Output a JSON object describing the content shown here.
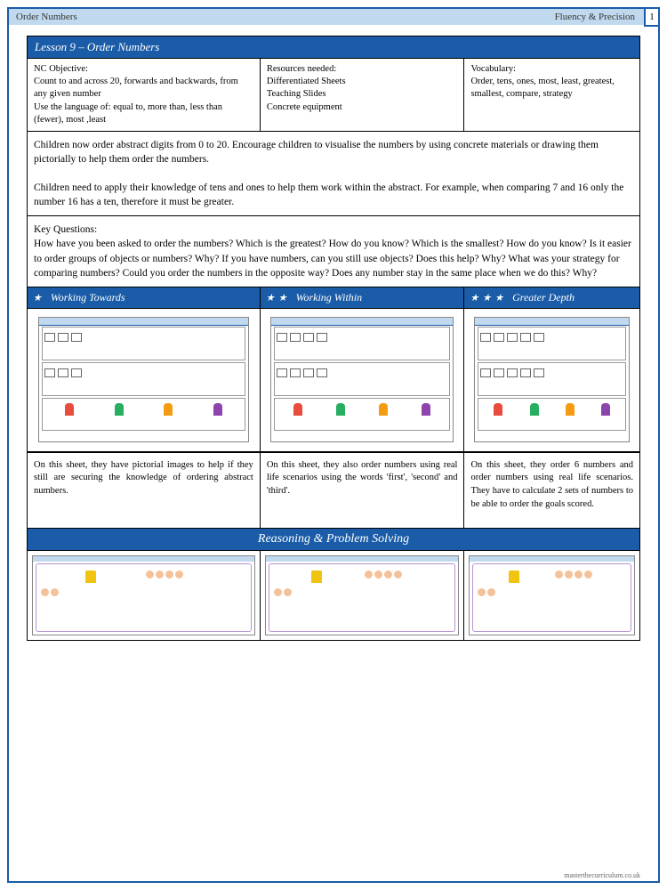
{
  "header": {
    "left": "Order Numbers",
    "right": "Fluency & Precision",
    "page": "1"
  },
  "lesson_title": "Lesson 9 – Order Numbers",
  "info": {
    "objective": {
      "label": "NC Objective:",
      "text": "Count to and across 20, forwards and backwards, from any given number\nUse the language of: equal to, more than, less than (fewer), most ,least"
    },
    "resources": {
      "label": "Resources needed:",
      "text": "Differentiated Sheets\nTeaching Slides\nConcrete equipment"
    },
    "vocab": {
      "label": "Vocabulary:",
      "text": "Order, tens, ones, most, least, greatest, smallest, compare, strategy"
    }
  },
  "description": "Children now order abstract digits from 0 to 20. Encourage children to visualise the numbers by using concrete materials or drawing them pictorially to help them order the numbers.\n\nChildren need to apply their knowledge of tens and ones to help them work within the abstract. For example, when comparing 7 and 16 only the number 16 has a ten, therefore it must be greater.",
  "key_questions": {
    "label": "Key Questions:",
    "text": "How have you been asked to order the numbers?  Which is the greatest? How do you know? Which is the smallest? How do you know?  Is it easier to order groups of objects or numbers? Why? If you have numbers, can you still use objects? Does this help? Why? What was your strategy for comparing numbers? Could you order the numbers in the opposite way? Does any number stay in the same place when we do this? Why?"
  },
  "levels": [
    {
      "stars": 1,
      "name": "Working Towards",
      "desc": "On this sheet, they have pictorial images to help if they still are securing the knowledge of ordering abstract numbers."
    },
    {
      "stars": 2,
      "name": "Working Within",
      "desc": "On this sheet, they also order numbers using real life scenarios using the words 'first', 'second' and 'third'."
    },
    {
      "stars": 3,
      "name": "Greater Depth",
      "desc": "On this sheet, they order 6 numbers and order numbers using real life scenarios. They have to calculate 2 sets of numbers to be able to order the goals scored."
    }
  ],
  "reasoning_title": "Reasoning & Problem Solving",
  "footer": "masterthecurriculum.co.uk",
  "colors": {
    "primary": "#1a5ca8",
    "light": "#c1d9ef"
  }
}
